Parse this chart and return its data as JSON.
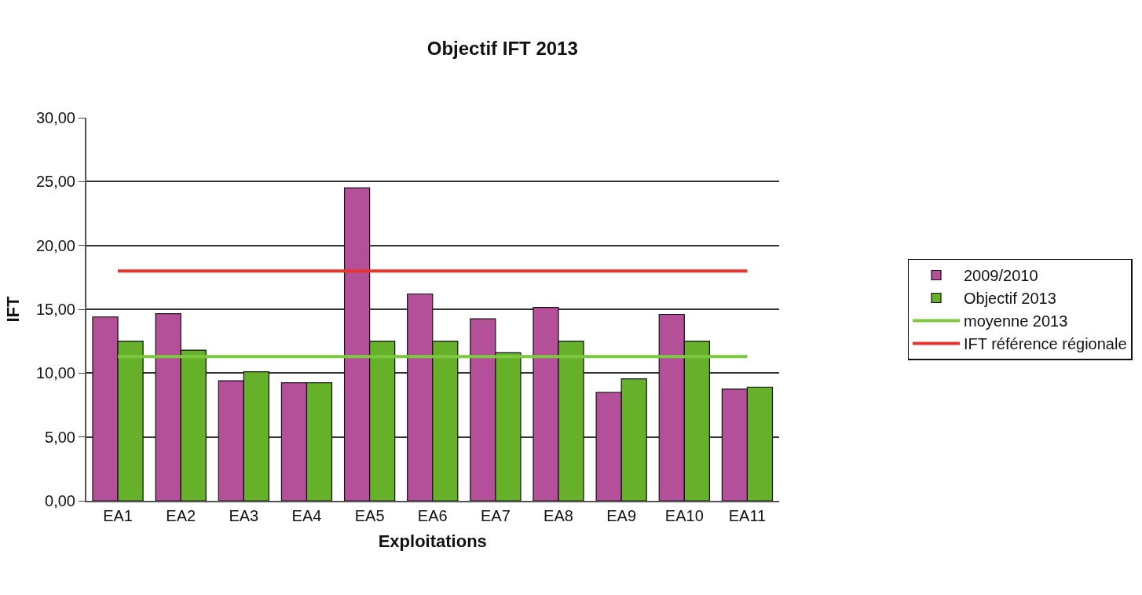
{
  "chart_data": {
    "type": "bar",
    "title": "Objectif IFT 2013",
    "xlabel": "Exploitations",
    "ylabel": "IFT",
    "categories": [
      "EA1",
      "EA2",
      "EA3",
      "EA4",
      "EA5",
      "EA6",
      "EA7",
      "EA8",
      "EA9",
      "EA10",
      "EA11"
    ],
    "series": [
      {
        "name": "2009/2010",
        "color": "#b44f9a",
        "values": [
          14.4,
          14.65,
          9.4,
          9.25,
          24.5,
          16.2,
          14.25,
          15.15,
          8.5,
          14.6,
          8.75
        ]
      },
      {
        "name": "Objectif 2013",
        "color": "#66b02a",
        "values": [
          12.5,
          11.8,
          10.1,
          9.25,
          12.5,
          12.5,
          11.6,
          12.5,
          9.55,
          12.5,
          8.9
        ]
      },
      {
        "name": "moyenne 2013",
        "type": "line",
        "color": "#7cc83e",
        "values": [
          11.3,
          11.3,
          11.3,
          11.3,
          11.3,
          11.3,
          11.3,
          11.3,
          11.3,
          11.3,
          11.3
        ]
      },
      {
        "name": "IFT référence régionale",
        "type": "line",
        "color": "#e8352a",
        "values": [
          18,
          18,
          18,
          18,
          18,
          18,
          18,
          18,
          18,
          18,
          18
        ]
      }
    ],
    "ylim": [
      0,
      30
    ],
    "yticks": [
      {
        "value": 0,
        "label": "0,00"
      },
      {
        "value": 5,
        "label": "5,00"
      },
      {
        "value": 10,
        "label": "10,00"
      },
      {
        "value": 15,
        "label": "15,00"
      },
      {
        "value": 20,
        "label": "20,00"
      },
      {
        "value": 25,
        "label": "25,00"
      },
      {
        "value": 30,
        "label": "30,00"
      }
    ],
    "grid": "y",
    "legend": "right",
    "marker": "none"
  }
}
